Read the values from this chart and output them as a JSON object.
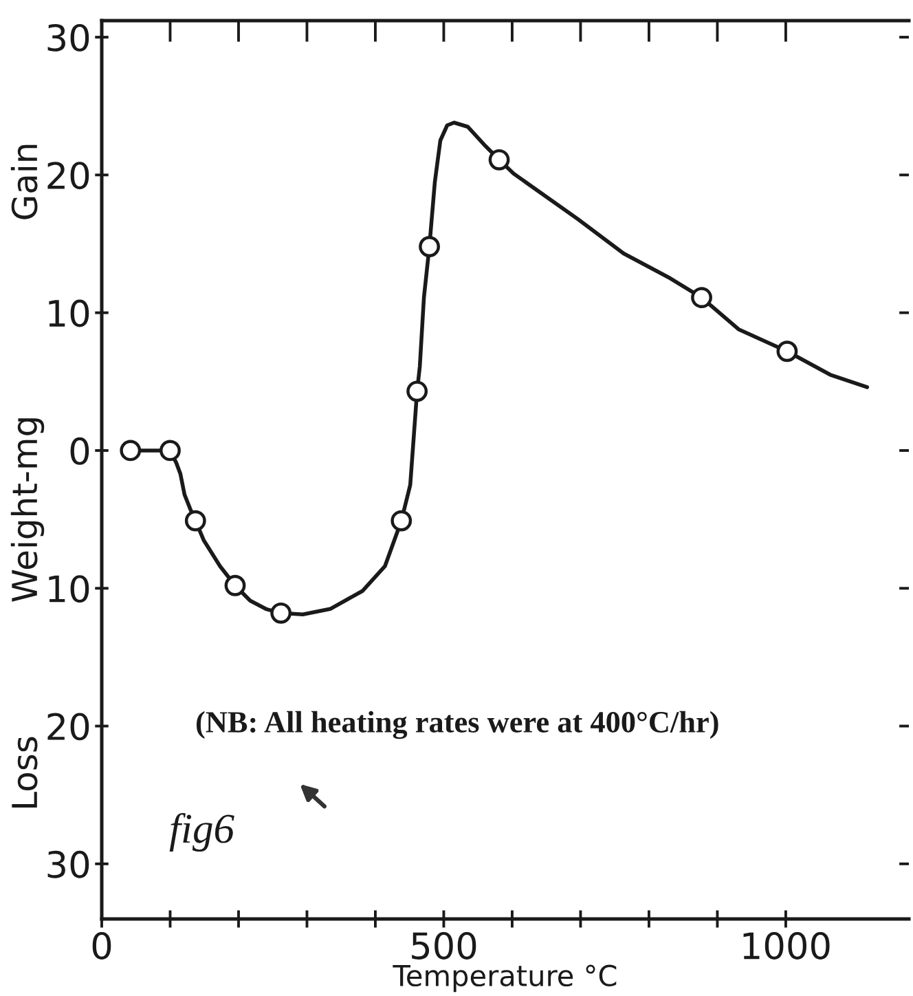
{
  "chart_data": {
    "type": "line",
    "xlabel": "Temperature °C",
    "ylabel": "Weight-mg",
    "annotations": [
      "Gain",
      "Loss",
      "(NB: All heating rates were at 400°C/hr)",
      "fig6"
    ],
    "xlim": [
      0,
      1180
    ],
    "ylim": [
      -34,
      31.2
    ],
    "xticks": [
      0,
      {
        "value": 100,
        "label": null
      },
      {
        "value": 200,
        "label": null
      },
      {
        "value": 300,
        "label": null
      },
      {
        "value": 400,
        "label": null
      },
      500,
      {
        "value": 600,
        "label": null
      },
      {
        "value": 700,
        "label": null
      },
      {
        "value": 800,
        "label": null
      },
      {
        "value": 900,
        "label": null
      },
      1000
    ],
    "yticks": [
      {
        "value": -30,
        "label": "30"
      },
      {
        "value": -20,
        "label": "20"
      },
      {
        "value": -10,
        "label": "10"
      },
      0,
      10,
      20,
      30
    ],
    "grid": false,
    "series": [
      {
        "color": "#1a1a1a",
        "x": [
          42,
          100,
          109,
          115,
          121,
          129,
          137,
          149,
          173,
          195,
          217,
          240,
          262,
          294,
          334,
          381,
          414,
          438,
          445,
          451,
          461,
          465,
          471,
          479,
          487,
          495,
          505,
          515,
          535,
          561,
          581,
          602,
          696,
          763,
          831,
          877,
          931,
          1002,
          1065,
          1119
        ],
        "values": [
          0,
          0,
          -0.9,
          -1.7,
          -3.2,
          -4.2,
          -5.1,
          -6.5,
          -8.4,
          -9.8,
          -10.9,
          -11.5,
          -11.8,
          -11.9,
          -11.5,
          -10.2,
          -8.4,
          -5.1,
          -3.7,
          -2.5,
          4.3,
          6.1,
          11.1,
          14.8,
          19.5,
          22.5,
          23.6,
          23.8,
          23.5,
          22.1,
          21.1,
          20.1,
          16.8,
          14.3,
          12.5,
          11.1,
          8.8,
          7.2,
          5.5,
          4.6
        ]
      },
      {
        "type": "scatter",
        "color": "#1a1a1a",
        "marker": "circle",
        "x": [
          42,
          100,
          137,
          195,
          262,
          438,
          461,
          479,
          581,
          877,
          1002
        ],
        "values": [
          0,
          0,
          -5.1,
          -9.8,
          -11.8,
          -5.1,
          4.3,
          14.8,
          21.1,
          11.1,
          7.2
        ]
      }
    ]
  }
}
